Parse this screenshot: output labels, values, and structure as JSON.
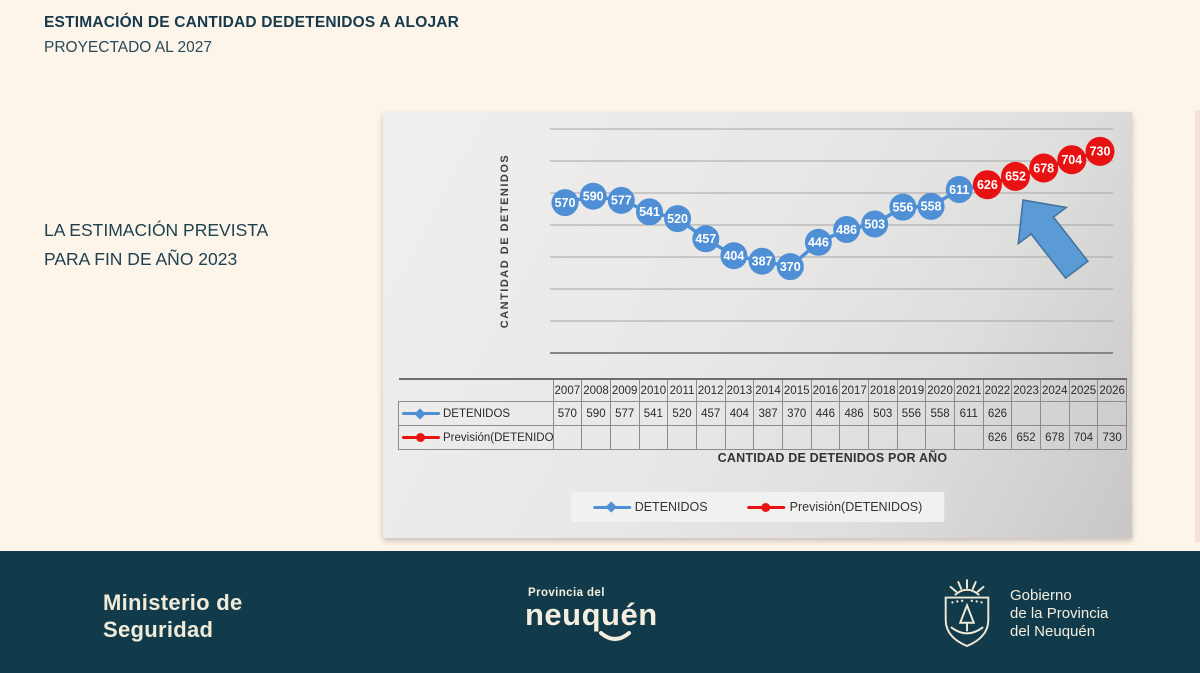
{
  "slide": {
    "title": "ESTIMACIÓN DE CANTIDAD DEDETENIDOS A ALOJAR",
    "subtitle": "PROYECTADO AL 2027",
    "note_line1": "LA ESTIMACIÓN PREVISTA",
    "note_line2": "PARA FIN DE AÑO 2023"
  },
  "chart_data": {
    "type": "line",
    "x_axis_title": "CANTIDAD DE DETENIDOS POR AÑO",
    "y_axis_title": "CANTIDAD DE DETENIDOS",
    "categories": [
      "2007",
      "2008",
      "2009",
      "2010",
      "2011",
      "2012",
      "2013",
      "2014",
      "2015",
      "2016",
      "2017",
      "2018",
      "2019",
      "2020",
      "2021",
      "2022",
      "2023",
      "2024",
      "2025",
      "2026"
    ],
    "series": [
      {
        "name": "DETENIDOS",
        "color": "#4f8fd6",
        "marker": "circle-labeled",
        "values": [
          570,
          590,
          577,
          541,
          520,
          457,
          404,
          387,
          370,
          446,
          486,
          503,
          556,
          558,
          611,
          626,
          null,
          null,
          null,
          null
        ]
      },
      {
        "name": "Previsión(DETENIDOS)",
        "color": "#e81212",
        "marker": "circle-labeled",
        "values": [
          null,
          null,
          null,
          null,
          null,
          null,
          null,
          null,
          null,
          null,
          null,
          null,
          null,
          null,
          null,
          626,
          652,
          678,
          704,
          730
        ]
      }
    ],
    "ylim": [
      100,
      800
    ],
    "gridline_step": 100,
    "grid": true,
    "legend_position": "bottom",
    "annotations": [
      "upward-trend-arrow"
    ]
  },
  "footer": {
    "ministry_line1": "Ministerio de",
    "ministry_line2": "Seguridad",
    "neuquen_small": "Provincia del",
    "neuquen_big": "neuquén",
    "gov_line1": "Gobierno",
    "gov_line2": "de la Provincia",
    "gov_line3": "del Neuquén"
  },
  "colors": {
    "slide_background": "#fdf5e9",
    "footer_background": "#113a4b",
    "title_text": "#17394c",
    "detenidos_blue": "#4f8fd6",
    "prevision_red": "#e81212",
    "arrow_fill": "#5b9bd5",
    "arrow_stroke": "#41719c",
    "chart_panel": "#e4e3e1"
  }
}
